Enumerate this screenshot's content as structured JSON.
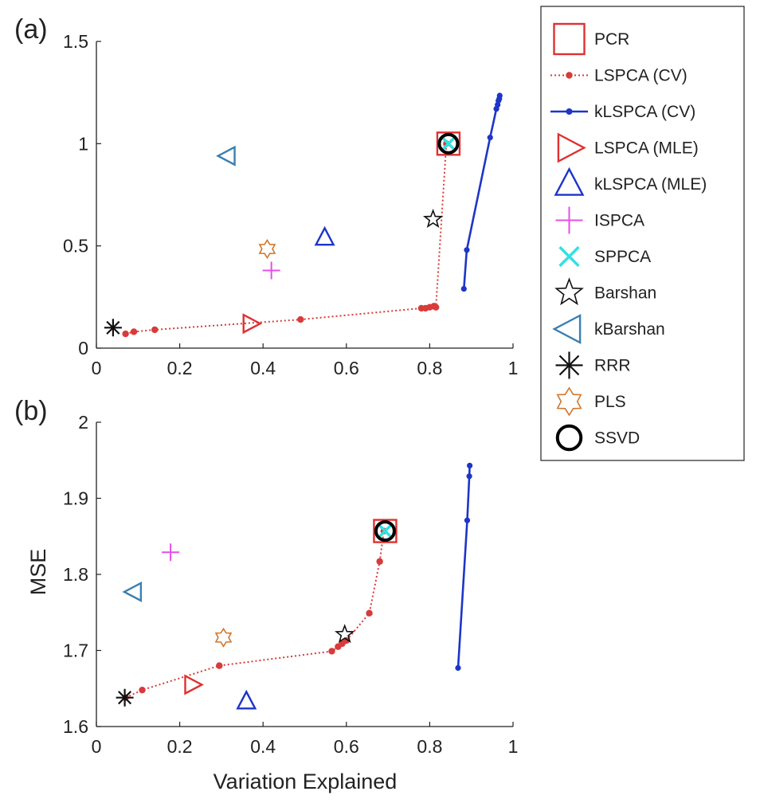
{
  "chart_data": {
    "type": "scatter",
    "xlabel": "Variation Explained",
    "ylabel": "MSE",
    "colors": {
      "PCR": "#e03030",
      "LSPCA (CV)": "#d93a3a",
      "kLSPCA (CV)": "#1d35c9",
      "LSPCA (MLE)": "#e03030",
      "kLSPCA (MLE)": "#1d35c9",
      "ISPCA": "#e84ee8",
      "SPPCA": "#34e0e0",
      "Barshan": "#111111",
      "kBarshan": "#3b7fb0",
      "RRR": "#111111",
      "PLS": "#d2762c",
      "SSVD": "#000000"
    },
    "legend": {
      "placement": "right",
      "entries": [
        {
          "label": "PCR",
          "marker": "square"
        },
        {
          "label": "LSPCA (CV)",
          "marker": "dot-dotted-line"
        },
        {
          "label": "kLSPCA (CV)",
          "marker": "dot-solid-line"
        },
        {
          "label": "LSPCA (MLE)",
          "marker": "triangle-right"
        },
        {
          "label": "kLSPCA (MLE)",
          "marker": "triangle-up"
        },
        {
          "label": "ISPCA",
          "marker": "plus"
        },
        {
          "label": "SPPCA",
          "marker": "x"
        },
        {
          "label": "Barshan",
          "marker": "star5"
        },
        {
          "label": "kBarshan",
          "marker": "triangle-left"
        },
        {
          "label": "RRR",
          "marker": "asterisk"
        },
        {
          "label": "PLS",
          "marker": "star6"
        },
        {
          "label": "SSVD",
          "marker": "circle"
        }
      ]
    },
    "panels": [
      {
        "label": "(a)",
        "xlim": [
          0,
          1
        ],
        "ylim": [
          0,
          1.5
        ],
        "xticks": [
          "0",
          "0.2",
          "0.4",
          "0.6",
          "0.8",
          "1"
        ],
        "xtick_values": [
          0,
          0.2,
          0.4,
          0.6,
          0.8,
          1
        ],
        "yticks": [
          "0",
          "0.5",
          "1",
          "1.5"
        ],
        "ytick_values": [
          0,
          0.5,
          1,
          1.5
        ],
        "series": [
          {
            "name": "LSPCA (CV)",
            "style": "dot-dotted-line",
            "points": [
              [
                0.07,
                0.07
              ],
              [
                0.09,
                0.08
              ],
              [
                0.14,
                0.09
              ],
              [
                0.49,
                0.14
              ],
              [
                0.78,
                0.195
              ],
              [
                0.79,
                0.195
              ],
              [
                0.8,
                0.2
              ],
              [
                0.81,
                0.205
              ],
              [
                0.815,
                0.2
              ],
              [
                0.84,
                1.0
              ]
            ]
          },
          {
            "name": "kLSPCA (CV)",
            "style": "dot-solid-line",
            "points": [
              [
                0.882,
                0.29
              ],
              [
                0.889,
                0.48
              ],
              [
                0.945,
                1.03
              ],
              [
                0.96,
                1.17
              ],
              [
                0.963,
                1.19
              ],
              [
                0.965,
                1.21
              ],
              [
                0.967,
                1.22
              ],
              [
                0.968,
                1.235
              ]
            ]
          },
          {
            "name": "PCR",
            "style": "square",
            "points": [
              [
                0.845,
                1.0
              ]
            ]
          },
          {
            "name": "SPPCA",
            "style": "x",
            "points": [
              [
                0.845,
                1.0
              ]
            ]
          },
          {
            "name": "SSVD",
            "style": "circle",
            "points": [
              [
                0.845,
                1.0
              ]
            ]
          },
          {
            "name": "LSPCA (MLE)",
            "style": "triangle-right",
            "points": [
              [
                0.37,
                0.12
              ]
            ]
          },
          {
            "name": "kLSPCA (MLE)",
            "style": "triangle-up",
            "points": [
              [
                0.548,
                0.54
              ]
            ]
          },
          {
            "name": "ISPCA",
            "style": "plus",
            "points": [
              [
                0.42,
                0.38
              ]
            ]
          },
          {
            "name": "Barshan",
            "style": "star5",
            "points": [
              [
                0.808,
                0.63
              ]
            ]
          },
          {
            "name": "kBarshan",
            "style": "triangle-left",
            "points": [
              [
                0.315,
                0.94
              ]
            ]
          },
          {
            "name": "RRR",
            "style": "asterisk",
            "points": [
              [
                0.04,
                0.1
              ]
            ]
          },
          {
            "name": "PLS",
            "style": "star6",
            "points": [
              [
                0.41,
                0.485
              ]
            ]
          }
        ]
      },
      {
        "label": "(b)",
        "xlim": [
          0,
          1
        ],
        "ylim": [
          1.6,
          2.0
        ],
        "xticks": [
          "0",
          "0.2",
          "0.4",
          "0.6",
          "0.8",
          "1"
        ],
        "xtick_values": [
          0,
          0.2,
          0.4,
          0.6,
          0.8,
          1
        ],
        "yticks": [
          "1.6",
          "1.7",
          "1.8",
          "1.9",
          "2"
        ],
        "ytick_values": [
          1.6,
          1.7,
          1.8,
          1.9,
          2.0
        ],
        "series": [
          {
            "name": "LSPCA (CV)",
            "style": "dot-dotted-line",
            "points": [
              [
                0.07,
                1.638
              ],
              [
                0.11,
                1.648
              ],
              [
                0.295,
                1.68
              ],
              [
                0.565,
                1.699
              ],
              [
                0.58,
                1.705
              ],
              [
                0.59,
                1.709
              ],
              [
                0.6,
                1.713
              ],
              [
                0.655,
                1.749
              ],
              [
                0.68,
                1.817
              ],
              [
                0.69,
                1.857
              ]
            ]
          },
          {
            "name": "kLSPCA (CV)",
            "style": "dot-solid-line",
            "points": [
              [
                0.868,
                1.677
              ],
              [
                0.89,
                1.871
              ],
              [
                0.895,
                1.929
              ],
              [
                0.896,
                1.943
              ]
            ]
          },
          {
            "name": "PCR",
            "style": "square",
            "points": [
              [
                0.693,
                1.857
              ]
            ]
          },
          {
            "name": "SPPCA",
            "style": "x",
            "points": [
              [
                0.693,
                1.857
              ]
            ]
          },
          {
            "name": "SSVD",
            "style": "circle",
            "points": [
              [
                0.693,
                1.857
              ]
            ]
          },
          {
            "name": "LSPCA (MLE)",
            "style": "triangle-right",
            "points": [
              [
                0.23,
                1.655
              ]
            ]
          },
          {
            "name": "kLSPCA (MLE)",
            "style": "triangle-up",
            "points": [
              [
                0.36,
                1.633
              ]
            ]
          },
          {
            "name": "ISPCA",
            "style": "plus",
            "points": [
              [
                0.178,
                1.829
              ]
            ]
          },
          {
            "name": "Barshan",
            "style": "star5",
            "points": [
              [
                0.596,
                1.721
              ]
            ]
          },
          {
            "name": "kBarshan",
            "style": "triangle-left",
            "points": [
              [
                0.09,
                1.777
              ]
            ]
          },
          {
            "name": "RRR",
            "style": "asterisk",
            "points": [
              [
                0.068,
                1.638
              ]
            ]
          },
          {
            "name": "PLS",
            "style": "star6",
            "points": [
              [
                0.305,
                1.717
              ]
            ]
          }
        ]
      }
    ]
  }
}
